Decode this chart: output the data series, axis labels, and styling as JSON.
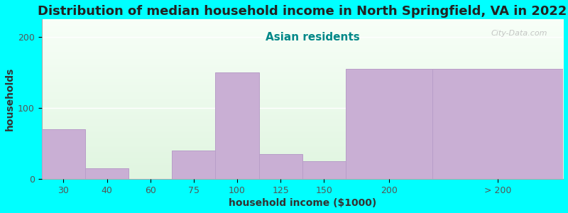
{
  "title": "Distribution of median household income in North Springfield, VA in 2022",
  "subtitle": "Asian residents",
  "xlabel": "household income ($1000)",
  "ylabel": "households",
  "background_color": "#00FFFF",
  "plot_bg_bottom": "#e0f5e0",
  "plot_bg_top": "#f8fff8",
  "bar_color": "#c9afd4",
  "bar_edge_color": "#b89ec8",
  "categories": [
    "30",
    "40",
    "60",
    "75",
    "100",
    "125",
    "150",
    "200",
    "> 200"
  ],
  "values": [
    70,
    15,
    0,
    40,
    150,
    35,
    25,
    155,
    155
  ],
  "bar_widths": [
    1,
    1,
    1,
    1,
    1,
    1,
    1,
    2,
    3
  ],
  "bar_positions": [
    0.5,
    1.5,
    2.5,
    3.5,
    4.5,
    5.5,
    6.5,
    8.0,
    10.5
  ],
  "tick_positions": [
    0.5,
    1.5,
    2.5,
    3.5,
    4.5,
    5.5,
    6.5,
    8.0,
    10.5
  ],
  "xlim": [
    0,
    12
  ],
  "ylim": [
    0,
    225
  ],
  "yticks": [
    0,
    100,
    200
  ],
  "title_fontsize": 13,
  "subtitle_fontsize": 11,
  "subtitle_color": "#008888",
  "axis_label_fontsize": 10,
  "tick_fontsize": 9,
  "watermark": "City-Data.com"
}
